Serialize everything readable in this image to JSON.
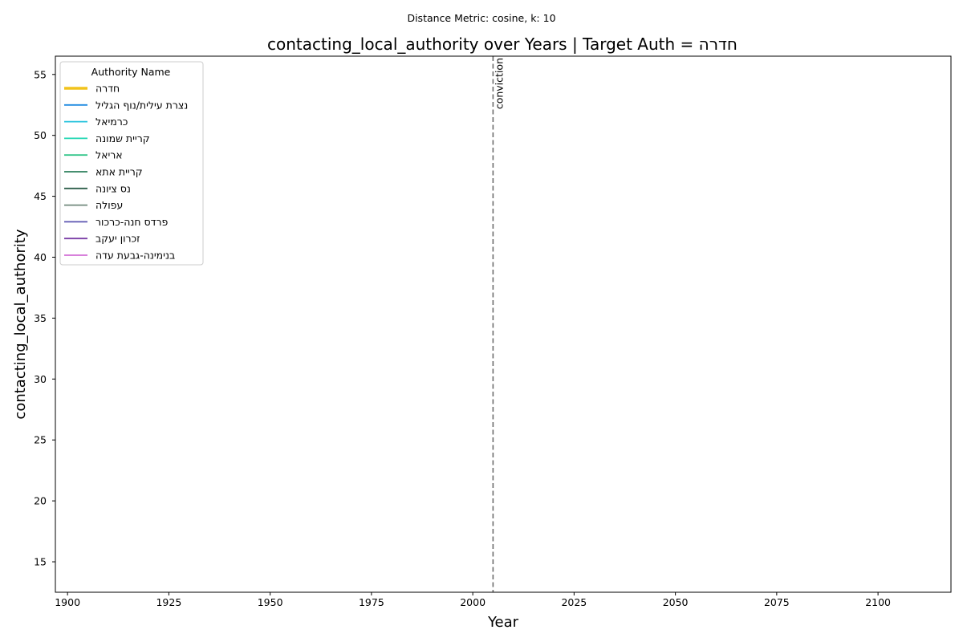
{
  "chart_data": {
    "type": "line",
    "suptitle": "Distance Metric: cosine, k: 10",
    "title": "contacting_local_authority over Years | Target Auth = חדרה",
    "xlabel": "Year",
    "ylabel": "contacting_local_authority",
    "xlim": [
      1897,
      2118
    ],
    "ylim": [
      12.5,
      56.5
    ],
    "xticks": [
      1900,
      1925,
      1950,
      1975,
      2000,
      2025,
      2050,
      2075,
      2100
    ],
    "yticks": [
      15,
      20,
      25,
      30,
      35,
      40,
      45,
      50,
      55
    ],
    "grid": false,
    "legend": {
      "title": "Authority Name",
      "placement": "top-left"
    },
    "series": [
      {
        "name": "חדרה",
        "color": "#f2c31b",
        "highlight": true,
        "points": []
      },
      {
        "name": "נצרת עילית/נוף הגליל",
        "color": "#1f8ae0",
        "highlight": false,
        "points": []
      },
      {
        "name": "כרמיאל",
        "color": "#26c2dd",
        "highlight": false,
        "points": []
      },
      {
        "name": "קריית שמונה",
        "color": "#1fd6b2",
        "highlight": false,
        "points": []
      },
      {
        "name": "אריאל",
        "color": "#34c68b",
        "highlight": false,
        "points": []
      },
      {
        "name": "קריית אתא",
        "color": "#2d7f5c",
        "highlight": false,
        "points": []
      },
      {
        "name": "נס ציונה",
        "color": "#2e5e4a",
        "highlight": false,
        "points": []
      },
      {
        "name": "עפולה",
        "color": "#718a7d",
        "highlight": false,
        "points": []
      },
      {
        "name": "פרדס חנה-כרכור",
        "color": "#5b55b0",
        "highlight": false,
        "points": []
      },
      {
        "name": "זכרון יעקב",
        "color": "#7b3ea6",
        "highlight": false,
        "points": []
      },
      {
        "name": "בנימינה-גבעת עדה",
        "color": "#d36fd6",
        "highlight": false,
        "points": []
      }
    ],
    "annotations": [
      {
        "type": "vline",
        "x": 2005,
        "label": "conviction",
        "color": "#6e6e6e",
        "style": "dashed"
      }
    ]
  }
}
